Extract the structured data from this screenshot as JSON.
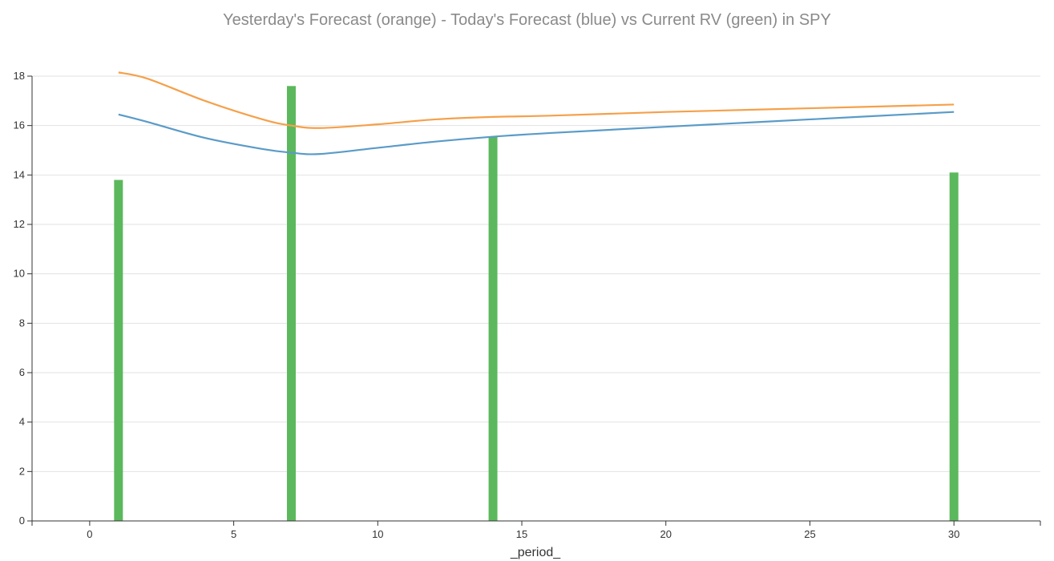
{
  "chart_data": {
    "type": "bar",
    "title": "Yesterday's Forecast (orange) - Today's Forecast (blue) vs Current RV (green) in SPY",
    "xlabel": "_period_",
    "ylabel": "",
    "xlim": [
      -2,
      33
    ],
    "ylim": [
      0,
      18
    ],
    "x_ticks": [
      0,
      5,
      10,
      15,
      20,
      25,
      30
    ],
    "y_ticks": [
      0,
      2,
      4,
      6,
      8,
      10,
      12,
      14,
      16,
      18
    ],
    "grid": "horizontal",
    "bars": {
      "name": "Current RV",
      "color": "#5cb85c",
      "x": [
        1,
        7,
        14,
        30
      ],
      "values": [
        13.8,
        17.6,
        15.55,
        14.1
      ]
    },
    "series": [
      {
        "name": "Yesterday's Forecast",
        "color": "#f5a04a",
        "x": [
          1,
          2,
          4,
          6,
          7,
          8,
          10,
          12,
          14,
          16,
          20,
          25,
          30
        ],
        "values": [
          18.15,
          17.9,
          17.0,
          16.25,
          16.0,
          15.9,
          16.05,
          16.25,
          16.35,
          16.4,
          16.55,
          16.7,
          16.85
        ]
      },
      {
        "name": "Today's Forecast",
        "color": "#5a9bc8",
        "x": [
          1,
          2,
          4,
          6,
          7,
          8,
          10,
          12,
          14,
          16,
          20,
          25,
          30
        ],
        "values": [
          16.45,
          16.15,
          15.5,
          15.05,
          14.9,
          14.85,
          15.1,
          15.35,
          15.55,
          15.7,
          15.95,
          16.25,
          16.55
        ]
      }
    ]
  }
}
